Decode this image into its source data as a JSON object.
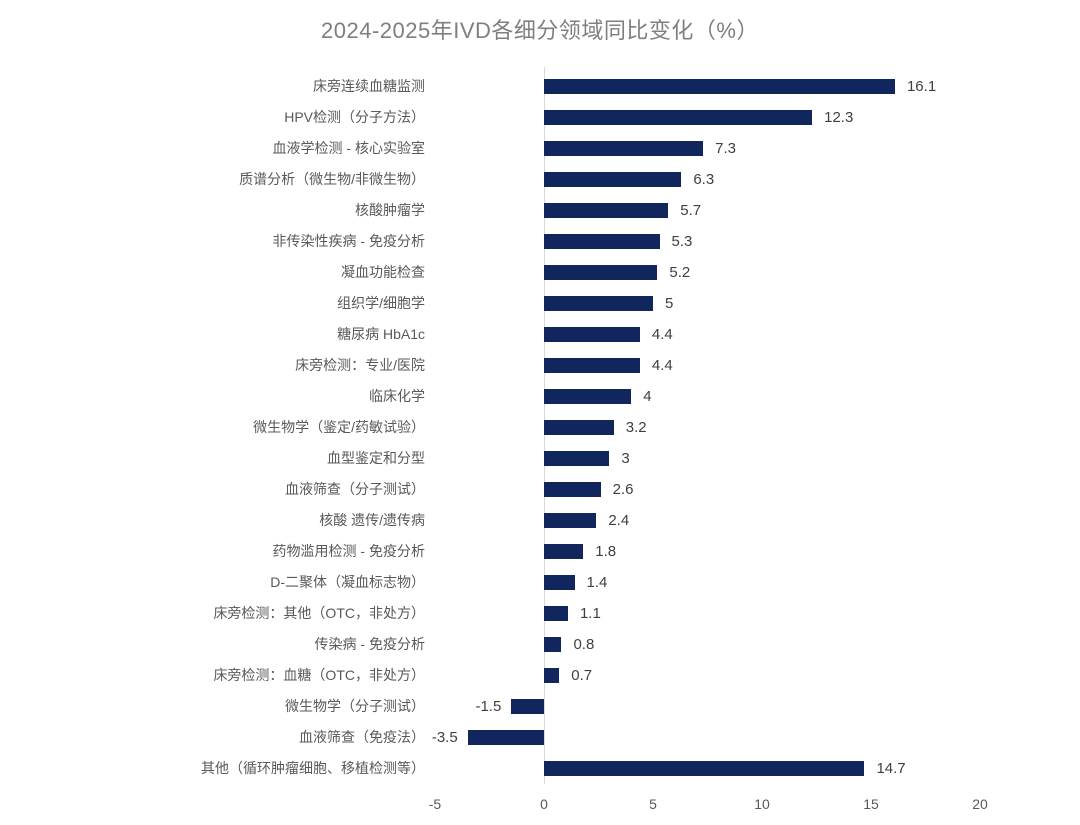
{
  "chart_data": {
    "type": "bar",
    "orientation": "horizontal",
    "title": "2024-2025年IVD各细分领域同比变化（%）",
    "categories": [
      "床旁连续血糖监测",
      "HPV检测（分子方法）",
      "血液学检测 - 核心实验室",
      "质谱分析（微生物/非微生物）",
      "核酸肿瘤学",
      "非传染性疾病 - 免疫分析",
      "凝血功能检查",
      "组织学/细胞学",
      "糖尿病 HbA1c",
      "床旁检测：专业/医院",
      "临床化学",
      "微生物学（鉴定/药敏试验）",
      "血型鉴定和分型",
      "血液筛查（分子测试）",
      "核酸 遗传/遗传病",
      "药物滥用检测 - 免疫分析",
      "D-二聚体（凝血标志物）",
      "床旁检测：其他（OTC，非处方）",
      "传染病 - 免疫分析",
      "床旁检测：血糖（OTC，非处方）",
      "微生物学（分子测试）",
      "血液筛查（免疫法）",
      "其他（循环肿瘤细胞、移植检测等）"
    ],
    "values": [
      16.1,
      12.3,
      7.3,
      6.3,
      5.7,
      5.3,
      5.2,
      5,
      4.4,
      4.4,
      4,
      3.2,
      3,
      2.6,
      2.4,
      1.8,
      1.4,
      1.1,
      0.8,
      0.7,
      -1.5,
      -3.5,
      14.7
    ],
    "xlabel": "",
    "ylabel": "",
    "xlim": [
      -5,
      20
    ],
    "xticks": [
      "-5",
      "0",
      "5",
      "10",
      "15",
      "20"
    ],
    "grid": false,
    "legend": false,
    "data_labels": true,
    "colors": {
      "bar": "#12265E",
      "zero_axis_line": "#D9D9D9",
      "title_text": "#7F7F7F",
      "category_text": "#595959",
      "value_text": "#3F3F3F",
      "tick_text": "#595959",
      "background": "#FFFFFF"
    }
  }
}
